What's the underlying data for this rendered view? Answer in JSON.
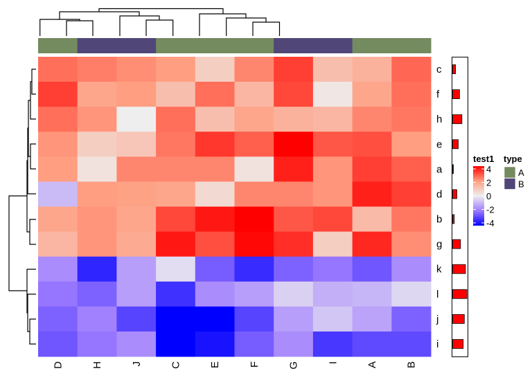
{
  "chart_data": {
    "type": "heatmap",
    "columns": [
      "D",
      "H",
      "J",
      "C",
      "E",
      "F",
      "G",
      "I",
      "A",
      "B"
    ],
    "rows": [
      "c",
      "f",
      "h",
      "e",
      "a",
      "d",
      "b",
      "g",
      "k",
      "l",
      "j",
      "i"
    ],
    "values": [
      [
        2.6,
        2.4,
        2.2,
        2.0,
        0.8,
        2.3,
        3.2,
        1.2,
        1.5,
        2.7
      ],
      [
        3.2,
        1.8,
        2.0,
        1.2,
        2.6,
        1.4,
        3.1,
        0.2,
        1.8,
        2.6
      ],
      [
        2.6,
        2.1,
        0.0,
        2.6,
        1.2,
        1.8,
        1.5,
        1.4,
        2.3,
        2.5
      ],
      [
        2.1,
        0.8,
        1.0,
        2.5,
        3.3,
        2.8,
        4.2,
        2.9,
        3.0,
        2.0
      ],
      [
        2.0,
        0.3,
        2.3,
        2.3,
        2.3,
        0.3,
        3.6,
        2.1,
        3.2,
        2.8
      ],
      [
        -0.9,
        2.0,
        1.9,
        1.8,
        0.5,
        2.3,
        2.3,
        2.1,
        3.6,
        3.2
      ],
      [
        1.8,
        2.1,
        1.8,
        3.1,
        3.7,
        4.2,
        2.9,
        3.1,
        1.3,
        2.5
      ],
      [
        1.4,
        2.1,
        1.7,
        3.7,
        3.0,
        3.9,
        3.4,
        0.8,
        3.5,
        2.2
      ],
      [
        -1.7,
        -3.4,
        -1.4,
        -0.3,
        -2.5,
        -3.3,
        -2.4,
        -2.1,
        -2.6,
        -1.7
      ],
      [
        -2.1,
        -2.4,
        -1.4,
        -3.2,
        -1.7,
        -1.4,
        -0.5,
        -1.1,
        -1.0,
        -0.4
      ],
      [
        -2.4,
        -1.9,
        -2.9,
        -4.2,
        -4.2,
        -2.9,
        -1.4,
        -0.7,
        -1.3,
        -2.4
      ],
      [
        -2.6,
        -2.1,
        -1.7,
        -4.0,
        -3.7,
        -2.5,
        -1.7,
        -3.1,
        -2.8,
        -2.8
      ]
    ],
    "color_scale": {
      "name": "test1",
      "breaks": [
        -4,
        -2,
        0,
        2,
        4
      ],
      "tick_labels": [
        "4",
        "2",
        "0",
        "-2",
        "-4"
      ],
      "colors": [
        "#0000FF",
        "#9E7BFF",
        "#EEEEEE",
        "#FF9E81",
        "#FF0000"
      ]
    },
    "column_annotation": {
      "name": "type",
      "values": [
        "A",
        "B",
        "B",
        "A",
        "A",
        "A",
        "B",
        "B",
        "A",
        "A"
      ],
      "levels": [
        "A",
        "B"
      ],
      "colors": {
        "A": "#748A5F",
        "B": "#504678"
      }
    },
    "row_barplot": {
      "values": [
        0.2,
        0.48,
        0.65,
        0.39,
        0.05,
        0.29,
        0.11,
        0.55,
        0.9,
        1.0,
        0.82,
        0.74
      ],
      "fill": "#FF0000"
    },
    "row_dendrogram": true,
    "column_dendrogram": true,
    "legend_placement": "right"
  }
}
